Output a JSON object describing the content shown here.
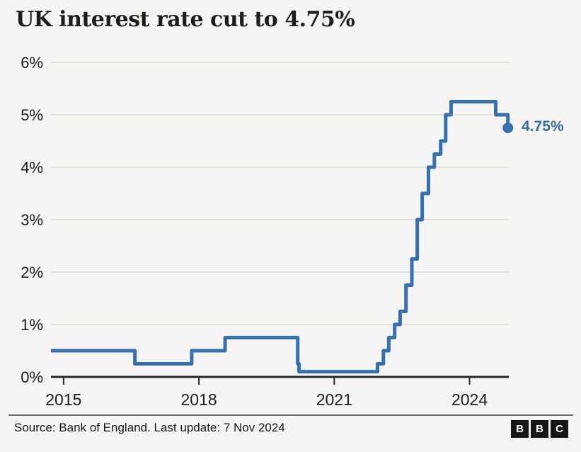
{
  "title": "UK interest rate cut to 4.75%",
  "source_line": "Source: Bank of England. Last update: 7 Nov 2024",
  "logo": {
    "letters": [
      "B",
      "B",
      "C"
    ]
  },
  "colors": {
    "background": "#f6f5f3",
    "line": "#3370b4",
    "annotation": "#2f6db3",
    "grid": "#dcdbd8",
    "axis": "#282828",
    "tick_text": "#1b1b1b",
    "title_text": "#1d1d1b",
    "separator": "#6b6b6b",
    "logo_bg": "#161616",
    "logo_text": "#ffffff"
  },
  "chart_data": {
    "type": "line",
    "subtype": "step-after",
    "title": "UK interest rate cut to 4.75%",
    "xlabel": "",
    "ylabel": "",
    "xlim": [
      2014.72,
      2024.87
    ],
    "ylim": [
      0,
      6
    ],
    "grid": "horizontal",
    "legend": "none",
    "xticks": [
      {
        "value": 2015,
        "label": "2015"
      },
      {
        "value": 2018,
        "label": "2018"
      },
      {
        "value": 2021,
        "label": "2021"
      },
      {
        "value": 2024,
        "label": "2024"
      }
    ],
    "yticks": [
      {
        "value": 0,
        "label": "0%"
      },
      {
        "value": 1,
        "label": "1%"
      },
      {
        "value": 2,
        "label": "2%"
      },
      {
        "value": 3,
        "label": "3%"
      },
      {
        "value": 4,
        "label": "4%"
      },
      {
        "value": 5,
        "label": "5%"
      },
      {
        "value": 6,
        "label": "6%"
      }
    ],
    "series": [
      {
        "name": "UK interest rate (%)",
        "points": [
          [
            2014.72,
            0.5
          ],
          [
            2016.58,
            0.25
          ],
          [
            2017.84,
            0.5
          ],
          [
            2018.58,
            0.75
          ],
          [
            2020.19,
            0.25
          ],
          [
            2020.22,
            0.1
          ],
          [
            2021.96,
            0.25
          ],
          [
            2022.09,
            0.5
          ],
          [
            2022.21,
            0.75
          ],
          [
            2022.34,
            1.0
          ],
          [
            2022.46,
            1.25
          ],
          [
            2022.59,
            1.75
          ],
          [
            2022.72,
            2.25
          ],
          [
            2022.84,
            3.0
          ],
          [
            2022.95,
            3.5
          ],
          [
            2023.09,
            4.0
          ],
          [
            2023.22,
            4.25
          ],
          [
            2023.36,
            4.5
          ],
          [
            2023.47,
            5.0
          ],
          [
            2023.59,
            5.25
          ],
          [
            2024.58,
            5.0
          ],
          [
            2024.85,
            4.75
          ]
        ]
      }
    ],
    "end_marker": {
      "x": 2024.85,
      "y": 4.75,
      "label": "4.75%"
    }
  }
}
